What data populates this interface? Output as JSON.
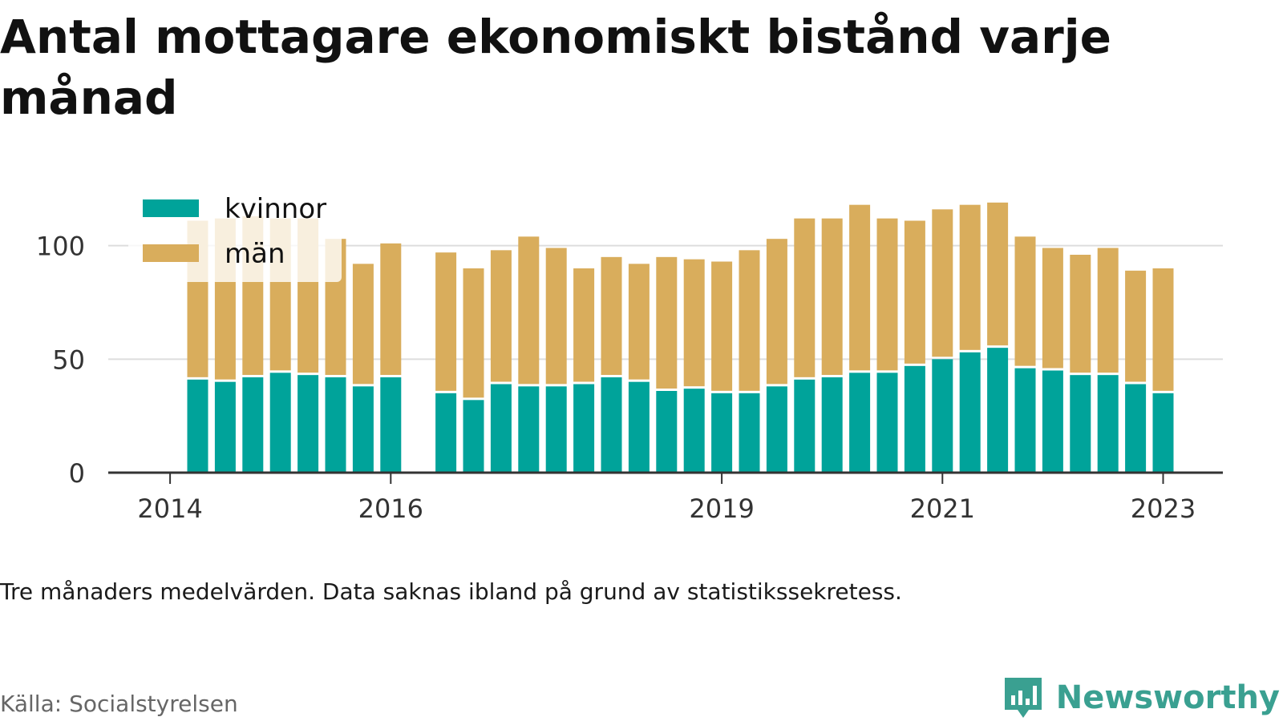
{
  "header": {
    "title": "Antal mottagare ekonomiskt bistånd varje månad"
  },
  "footer": {
    "note": "Tre månaders medelvärden. Data saknas ibland på grund av statistikssekretess.",
    "source": "Källa: Socialstyrelsen",
    "brand": "Newsworthy",
    "brand_icon": "bar-chart-speech-bubble-icon"
  },
  "colors": {
    "kvinnor": "#00a39a",
    "man": "#d9ad5c",
    "grid": "#dddddd",
    "axis": "#333333",
    "brand": "#3aa091"
  },
  "chart_data": {
    "type": "bar",
    "stacked": true,
    "title": "Antal mottagare ekonomiskt bistånd varje månad",
    "xlabel": "",
    "ylabel": "",
    "ylim": [
      0,
      120
    ],
    "yticks": [
      0,
      50,
      100
    ],
    "grid": true,
    "legend_position": "top-left",
    "x_tick_labels": [
      "2014",
      "2016",
      "2019",
      "2021",
      "2023"
    ],
    "x": [
      "2014-Q2",
      "2014-Q3",
      "2014-Q4",
      "2015-Q1",
      "2015-Q2",
      "2015-Q3",
      "2015-Q4",
      "2016-Q1",
      "2016-Q2",
      "2016-Q3",
      "2016-Q4",
      "2017-Q1",
      "2017-Q2",
      "2017-Q3",
      "2017-Q4",
      "2018-Q1",
      "2018-Q2",
      "2018-Q3",
      "2018-Q4",
      "2019-Q1",
      "2019-Q2",
      "2019-Q3",
      "2019-Q4",
      "2020-Q1",
      "2020-Q2",
      "2020-Q3",
      "2020-Q4",
      "2021-Q1",
      "2021-Q2",
      "2021-Q3",
      "2021-Q4",
      "2022-Q1",
      "2022-Q2",
      "2022-Q3",
      "2022-Q4",
      "2023-Q1"
    ],
    "series": [
      {
        "name": "kvinnor",
        "values": [
          41,
          40,
          42,
          44,
          43,
          42,
          38,
          42,
          null,
          35,
          32,
          39,
          38,
          38,
          39,
          42,
          40,
          36,
          37,
          35,
          35,
          38,
          41,
          42,
          44,
          44,
          47,
          50,
          53,
          55,
          46,
          45,
          43,
          43,
          39,
          35
        ]
      },
      {
        "name": "män",
        "values": [
          70,
          72,
          71,
          68,
          69,
          61,
          54,
          59,
          null,
          62,
          58,
          59,
          66,
          61,
          51,
          53,
          52,
          59,
          57,
          58,
          63,
          65,
          71,
          70,
          74,
          68,
          64,
          66,
          65,
          64,
          58,
          54,
          53,
          56,
          50,
          55
        ]
      }
    ]
  }
}
